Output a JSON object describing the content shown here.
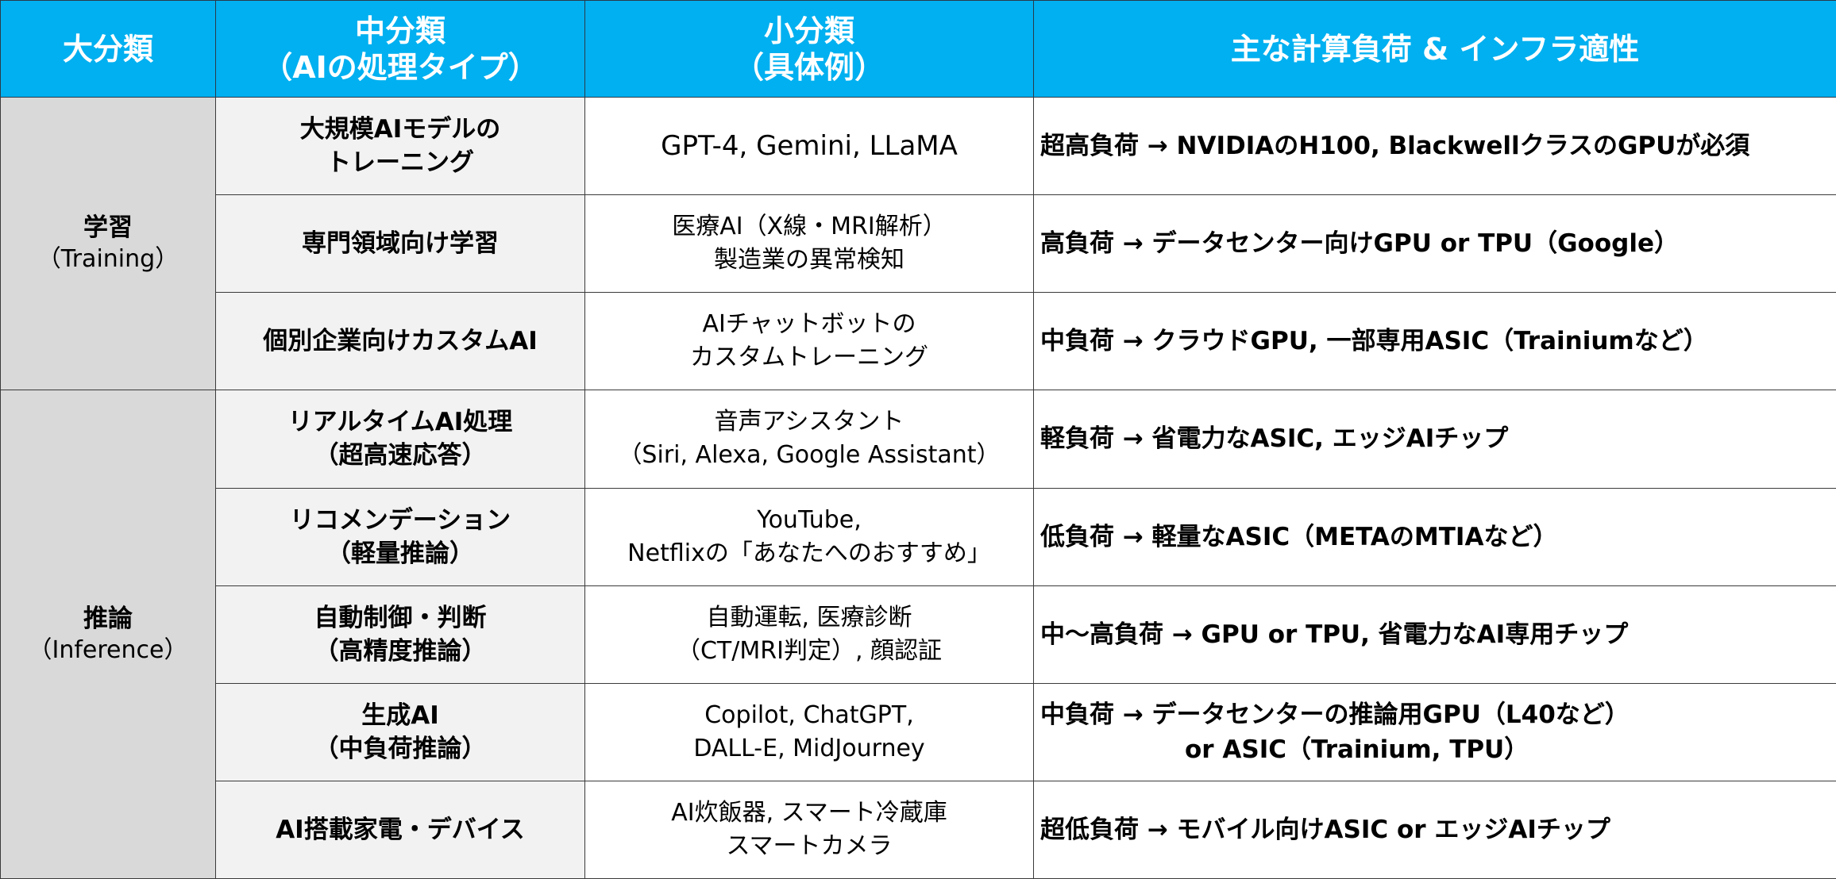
{
  "header": {
    "col1": [
      "大分類"
    ],
    "col2": [
      "中分類",
      "（AIの処理タイプ）"
    ],
    "col3": [
      "小分類",
      "（具体例）"
    ],
    "col4": [
      "主な計算負荷 & インフラ適性"
    ]
  },
  "groups": [
    {
      "label": "学習",
      "sub": "（Training）",
      "rows": [
        {
          "mid": [
            "大規模AIモデルの",
            "トレーニング"
          ],
          "examples": [
            "GPT-4, Gemini, LLaMA"
          ],
          "load": [
            "超高負荷 → NVIDIAのH100, BlackwellクラスのGPUが必須"
          ]
        },
        {
          "mid": [
            "専門領域向け学習"
          ],
          "examples": [
            "医療AI（X線・MRI解析）",
            "製造業の異常検知"
          ],
          "load": [
            "高負荷 → データセンター向けGPU or TPU（Google）"
          ]
        },
        {
          "mid": [
            "個別企業向けカスタムAI"
          ],
          "examples": [
            "AIチャットボットの",
            "カスタムトレーニング"
          ],
          "load": [
            "中負荷 → クラウドGPU, 一部専用ASIC（Trainiumなど）"
          ]
        }
      ]
    },
    {
      "label": "推論",
      "sub": "（Inference）",
      "rows": [
        {
          "mid": [
            "リアルタイムAI処理",
            "（超高速応答）"
          ],
          "examples": [
            "音声アシスタント",
            "（Siri, Alexa, Google Assistant）"
          ],
          "load": [
            "軽負荷 → 省電力なASIC, エッジAIチップ"
          ]
        },
        {
          "mid": [
            "リコメンデーション",
            "（軽量推論）"
          ],
          "examples": [
            "YouTube,",
            "Netflixの「あなたへのおすすめ」"
          ],
          "load": [
            "低負荷 → 軽量なASIC（METAのMTIAなど）"
          ]
        },
        {
          "mid": [
            "自動制御・判断",
            "（高精度推論）"
          ],
          "examples": [
            "自動運転, 医療診断",
            "（CT/MRI判定）, 顔認証"
          ],
          "load": [
            "中～高負荷 → GPU or TPU, 省電力なAI専用チップ"
          ]
        },
        {
          "mid": [
            "生成AI",
            "（中負荷推論）"
          ],
          "examples": [
            "Copilot, ChatGPT,",
            "DALL-E, MidJourney"
          ],
          "load": [
            "中負荷 → データセンターの推論用GPU（L40など）",
            "or ASIC（Trainium, TPU）"
          ]
        },
        {
          "mid": [
            "AI搭載家電・デバイス"
          ],
          "examples": [
            "AI炊飯器, スマート冷蔵庫",
            "スマートカメラ"
          ],
          "load": [
            "超低負荷 → モバイル向けASIC or エッジAIチップ"
          ]
        }
      ]
    }
  ]
}
